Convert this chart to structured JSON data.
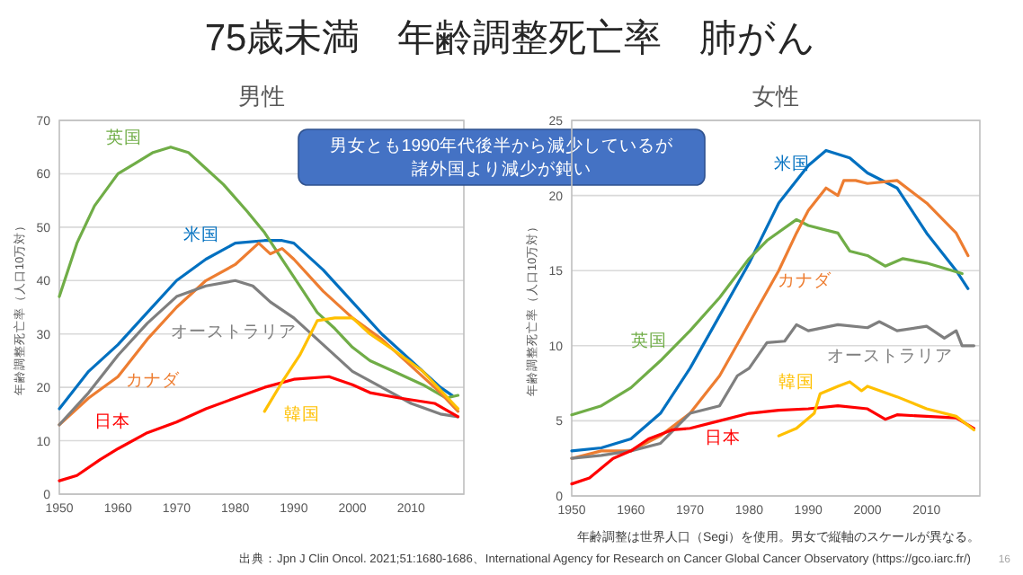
{
  "chart_data": [
    {
      "type": "line",
      "title": "男性",
      "ylabel": "年齢調整死亡率（人口10万対）",
      "xlim": [
        1950,
        2019
      ],
      "ylim": [
        0,
        70
      ],
      "xticks": [
        1950,
        1960,
        1970,
        1980,
        1990,
        2000,
        2010
      ],
      "yticks": [
        0,
        10,
        20,
        30,
        40,
        50,
        60,
        70
      ],
      "grid": "y",
      "annotations": [
        "75歳未満　年齢調整死亡率　肺がん",
        "男女とも1990年代後半から減少しているが",
        "諸外国より減少が鈍い"
      ],
      "series": [
        {
          "name": "米国",
          "color": "#0070c0",
          "x": [
            1950,
            1955,
            1960,
            1965,
            1970,
            1975,
            1980,
            1985,
            1988,
            1990,
            1995,
            2000,
            2005,
            2010,
            2015,
            2017
          ],
          "values": [
            16,
            23,
            28,
            34,
            40,
            44,
            47,
            47.5,
            47.5,
            47,
            42,
            36,
            30,
            25,
            20,
            18.5
          ]
        },
        {
          "name": "英国",
          "color": "#70ad47",
          "x": [
            1950,
            1953,
            1956,
            1960,
            1963,
            1966,
            1969,
            1972,
            1975,
            1978,
            1982,
            1985,
            1988,
            1991,
            1994,
            1997,
            2000,
            2003,
            2007,
            2012,
            2016,
            2018
          ],
          "values": [
            37,
            47,
            54,
            60,
            62,
            64,
            65,
            64,
            61,
            58,
            53,
            49,
            44,
            39,
            34,
            31,
            27.5,
            25,
            23,
            20.5,
            18,
            18.5
          ]
        },
        {
          "name": "カナダ",
          "color": "#ed7d31",
          "x": [
            1950,
            1955,
            1960,
            1965,
            1970,
            1975,
            1980,
            1984,
            1986,
            1988,
            1990,
            1995,
            2000,
            2005,
            2010,
            2015,
            2018
          ],
          "values": [
            13,
            18,
            22,
            29,
            35,
            40,
            43,
            47,
            45,
            46,
            44,
            38,
            33,
            29,
            24,
            19,
            15.5
          ]
        },
        {
          "name": "オーストラリア",
          "color": "#7f7f7f",
          "x": [
            1950,
            1955,
            1960,
            1965,
            1970,
            1975,
            1980,
            1983,
            1986,
            1990,
            1995,
            2000,
            2005,
            2010,
            2015,
            2018
          ],
          "values": [
            13,
            19,
            26,
            32,
            37,
            39,
            40,
            39,
            36,
            33,
            28,
            23,
            20,
            17,
            15,
            14.5
          ]
        },
        {
          "name": "日本",
          "color": "#ff0000",
          "x": [
            1950,
            1953,
            1957,
            1960,
            1965,
            1970,
            1975,
            1980,
            1985,
            1990,
            1996,
            2000,
            2003,
            2008,
            2014,
            2018
          ],
          "values": [
            2.5,
            3.5,
            6.5,
            8.5,
            11.5,
            13.5,
            16,
            18,
            20,
            21.5,
            22,
            20.5,
            19,
            18,
            17,
            14.5
          ]
        },
        {
          "name": "韓国",
          "color": "#ffc000",
          "x": [
            1985,
            1988,
            1991,
            1994,
            1997,
            2000,
            2003,
            2007,
            2012,
            2018
          ],
          "values": [
            15.5,
            21,
            26,
            32.5,
            33,
            33,
            30,
            27,
            23,
            16
          ]
        }
      ]
    },
    {
      "type": "line",
      "title": "女性",
      "ylabel": "年齢調整死亡率（人口10万対）",
      "xlim": [
        1950,
        2019
      ],
      "ylim": [
        0,
        25
      ],
      "xticks": [
        1950,
        1960,
        1970,
        1980,
        1990,
        2000,
        2010
      ],
      "yticks": [
        0,
        5,
        10,
        15,
        20,
        25
      ],
      "grid": "y",
      "annotations": [
        "年齢調整は世界人口（Segi）を使用。男女で縦軸のスケールが異なる。",
        "出典：Jpn J Clin Oncol. 2021;51:1680-1686、International Agency for Research on Cancer Global Cancer Observatory (https://gco.iarc.fr/)",
        "16"
      ],
      "series": [
        {
          "name": "米国",
          "color": "#0070c0",
          "x": [
            1950,
            1955,
            1960,
            1965,
            1970,
            1975,
            1980,
            1985,
            1990,
            1993,
            1997,
            2000,
            2005,
            2010,
            2015,
            2017
          ],
          "values": [
            3,
            3.2,
            3.8,
            5.5,
            8.5,
            12,
            15.5,
            19.5,
            22,
            23,
            22.5,
            21.5,
            20.5,
            17.5,
            15,
            13.8
          ]
        },
        {
          "name": "英国",
          "color": "#70ad47",
          "x": [
            1950,
            1955,
            1960,
            1965,
            1970,
            1975,
            1980,
            1983,
            1988,
            1990,
            1995,
            1997,
            2000,
            2003,
            2006,
            2010,
            2016
          ],
          "values": [
            5.4,
            6,
            7.2,
            9,
            11,
            13.2,
            15.8,
            17,
            18.4,
            18,
            17.5,
            16.3,
            16,
            15.3,
            15.8,
            15.5,
            14.8
          ]
        },
        {
          "name": "カナダ",
          "color": "#ed7d31",
          "x": [
            1950,
            1955,
            1960,
            1965,
            1970,
            1975,
            1980,
            1985,
            1988,
            1990,
            1993,
            1995,
            1996,
            1998,
            2000,
            2005,
            2010,
            2015,
            2017
          ],
          "values": [
            2.5,
            3,
            3,
            4,
            5.5,
            8,
            11.5,
            15,
            17.5,
            19,
            20.5,
            20,
            21,
            21,
            20.8,
            21,
            19.5,
            17.5,
            16
          ]
        },
        {
          "name": "オーストラリア",
          "color": "#7f7f7f",
          "x": [
            1950,
            1955,
            1960,
            1965,
            1970,
            1975,
            1978,
            1980,
            1983,
            1986,
            1988,
            1990,
            1995,
            2000,
            2002,
            2005,
            2010,
            2013,
            2015,
            2016,
            2018
          ],
          "values": [
            2.5,
            2.7,
            3,
            3.5,
            5.5,
            6,
            8,
            8.5,
            10.2,
            10.3,
            11.4,
            11,
            11.4,
            11.2,
            11.6,
            11,
            11.3,
            10.5,
            11,
            10,
            10
          ]
        },
        {
          "name": "日本",
          "color": "#ff0000",
          "x": [
            1950,
            1953,
            1957,
            1960,
            1963,
            1967,
            1970,
            1975,
            1980,
            1985,
            1990,
            1995,
            2000,
            2003,
            2005,
            2010,
            2015,
            2018
          ],
          "values": [
            0.8,
            1.2,
            2.5,
            3,
            3.8,
            4.4,
            4.5,
            5,
            5.5,
            5.7,
            5.8,
            6,
            5.8,
            5.1,
            5.4,
            5.3,
            5.2,
            4.5
          ]
        },
        {
          "name": "韓国",
          "color": "#ffc000",
          "x": [
            1985,
            1988,
            1991,
            1992,
            1995,
            1997,
            1999,
            2000,
            2005,
            2010,
            2015,
            2018
          ],
          "values": [
            4,
            4.5,
            5.5,
            6.8,
            7.3,
            7.6,
            7,
            7.3,
            6.6,
            5.8,
            5.3,
            4.4
          ]
        }
      ]
    }
  ]
}
